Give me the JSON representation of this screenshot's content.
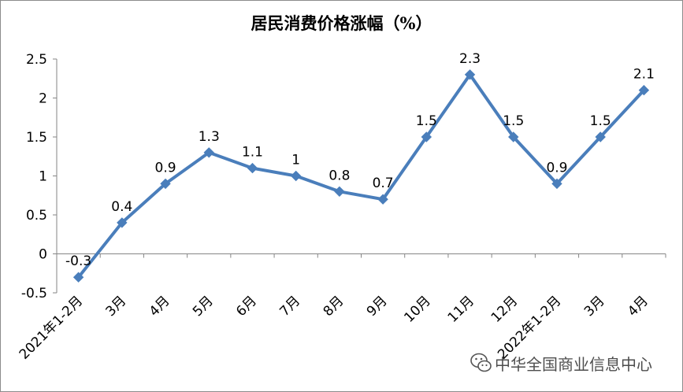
{
  "chart_data": {
    "type": "line",
    "title": "居民消费价格涨幅（%）",
    "categories": [
      "2021年1-2月",
      "3月",
      "4月",
      "5月",
      "6月",
      "7月",
      "8月",
      "9月",
      "10月",
      "11月",
      "12月",
      "2022年1-2月",
      "3月",
      "4月"
    ],
    "series": [
      {
        "values": [
          -0.3,
          0.4,
          0.9,
          1.3,
          1.1,
          1,
          0.8,
          0.7,
          1.5,
          2.3,
          1.5,
          0.9,
          1.5,
          2.1
        ],
        "color": "#4a7ebb"
      }
    ],
    "data_labels": [
      "-0.3",
      "0.4",
      "0.9",
      "1.3",
      "1.1",
      "1",
      "0.8",
      "0.7",
      "1.5",
      "2.3",
      "1.5",
      "0.9",
      "1.5",
      "2.1"
    ],
    "ylim": [
      -0.5,
      2.5
    ],
    "yticks": [
      -0.5,
      0,
      0.5,
      1,
      1.5,
      2,
      2.5
    ],
    "ytick_labels": [
      "-0.5",
      "0",
      "0.5",
      "1",
      "1.5",
      "2",
      "2.5"
    ],
    "grid": false,
    "legend": "none"
  },
  "watermark": {
    "text": "中华全国商业信息中心",
    "icon": "wechat-icon"
  }
}
